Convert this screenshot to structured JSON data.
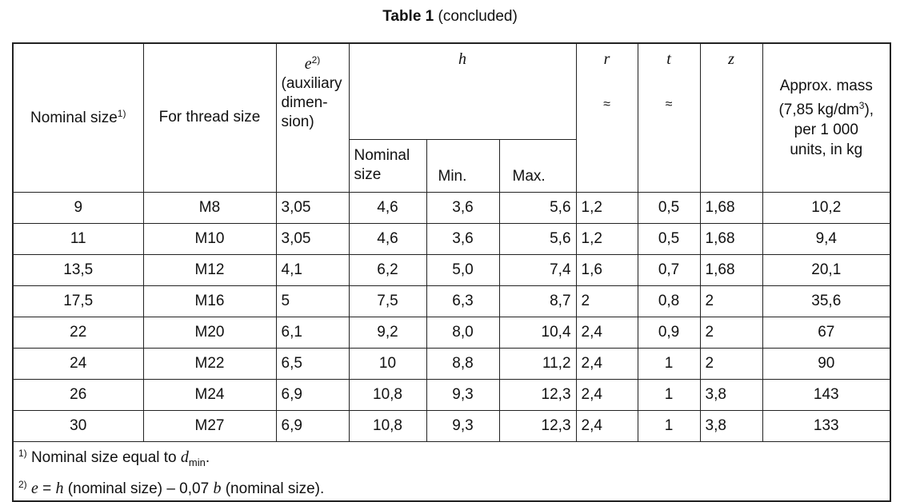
{
  "caption": {
    "bold": "Table 1",
    "rest": "(concluded)"
  },
  "headers": {
    "nominal_size": "Nominal size",
    "nominal_size_note": "1)",
    "thread": "For thread size",
    "e_symbol": "e",
    "e_note": "2)",
    "e_desc": "(auxiliary dimen-sion)",
    "h_symbol": "h",
    "h_nominal": "Nominal size",
    "h_min": "Min.",
    "h_max": "Max.",
    "r_symbol": "r",
    "r_approx": "≈",
    "t_symbol": "t",
    "t_approx": "≈",
    "z_symbol": "z",
    "mass_line1": "Approx. mass",
    "mass_line2": "(7,85 kg/dm",
    "mass_exp": "3",
    "mass_line2_end": "),",
    "mass_line3": "per 1 000",
    "mass_line4": "units, in kg"
  },
  "rows": [
    {
      "nominal": "9",
      "thread": "M8",
      "e": "3,05",
      "h_nom": "4,6",
      "h_min": "3,6",
      "h_max": "5,6",
      "r": "1,2",
      "t": "0,5",
      "z": "1,68",
      "mass": "10,2"
    },
    {
      "nominal": "11",
      "thread": "M10",
      "e": "3,05",
      "h_nom": "4,6",
      "h_min": "3,6",
      "h_max": "5,6",
      "r": "1,2",
      "t": "0,5",
      "z": "1,68",
      "mass": "9,4"
    },
    {
      "nominal": "13,5",
      "thread": "M12",
      "e": "4,1",
      "h_nom": "6,2",
      "h_min": "5,0",
      "h_max": "7,4",
      "r": "1,6",
      "t": "0,7",
      "z": "1,68",
      "mass": "20,1"
    },
    {
      "nominal": "17,5",
      "thread": "M16",
      "e": "5",
      "h_nom": "7,5",
      "h_min": "6,3",
      "h_max": "8,7",
      "r": "2",
      "t": "0,8",
      "z": "2",
      "mass": "35,6"
    },
    {
      "nominal": "22",
      "thread": "M20",
      "e": "6,1",
      "h_nom": "9,2",
      "h_min": "8,0",
      "h_max": "10,4",
      "r": "2,4",
      "t": "0,9",
      "z": "2",
      "mass": "67"
    },
    {
      "nominal": "24",
      "thread": "M22",
      "e": "6,5",
      "h_nom": "10",
      "h_min": "8,8",
      "h_max": "11,2",
      "r": "2,4",
      "t": "1",
      "z": "2",
      "mass": "90"
    },
    {
      "nominal": "26",
      "thread": "M24",
      "e": "6,9",
      "h_nom": "10,8",
      "h_min": "9,3",
      "h_max": "12,3",
      "r": "2,4",
      "t": "1",
      "z": "3,8",
      "mass": "143"
    },
    {
      "nominal": "30",
      "thread": "M27",
      "e": "6,9",
      "h_nom": "10,8",
      "h_min": "9,3",
      "h_max": "12,3",
      "r": "2,4",
      "t": "1",
      "z": "3,8",
      "mass": "133"
    }
  ],
  "footnotes": {
    "n1_mark": "1)",
    "n1_text": "Nominal size equal to",
    "n1_symbol": "d",
    "n1_sub": "min",
    "n1_end": ".",
    "n2_mark": "2)",
    "n2_e": "e",
    "n2_eq": "=",
    "n2_h": "h",
    "n2_mid": "(nominal size) – 0,07",
    "n2_b": "b",
    "n2_end": "(nominal size)."
  }
}
